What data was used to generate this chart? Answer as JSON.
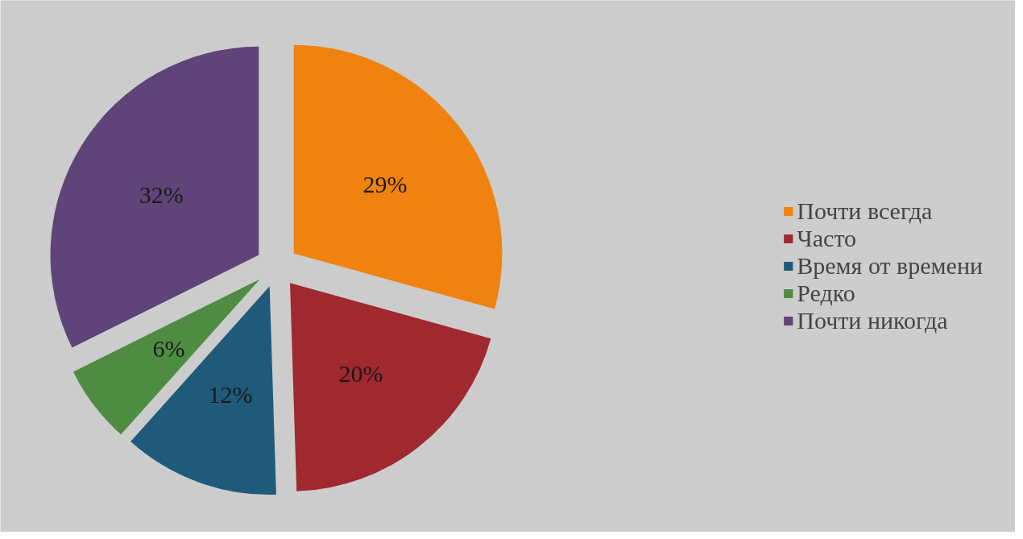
{
  "chart_data": {
    "type": "pie",
    "categories": [
      "Почти всегда",
      "Часто",
      "Время от времени",
      "Редко",
      "Почти никогда"
    ],
    "values": [
      29,
      20,
      12,
      6,
      32
    ],
    "colors": [
      "#f0820f",
      "#a0282f",
      "#1f5a7a",
      "#4e8c42",
      "#5e4478"
    ],
    "value_labels": [
      "29%",
      "20%",
      "12%",
      "6%",
      "32%"
    ],
    "legend": "right"
  }
}
